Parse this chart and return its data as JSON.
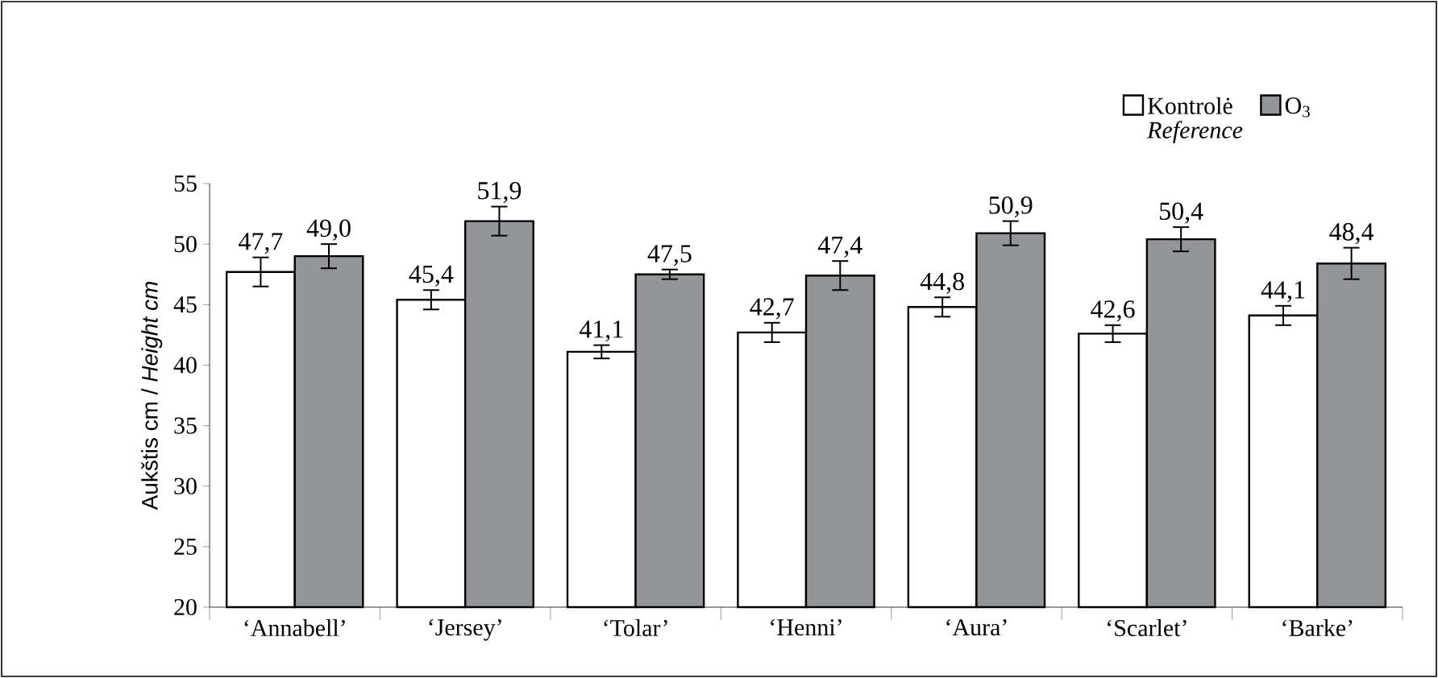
{
  "chart_data": {
    "type": "bar",
    "categories": [
      "‘Annabell’",
      "‘Jersey’",
      "‘Tolar’",
      "‘Henni’",
      "‘Aura’",
      "‘Scarlet’",
      "‘Barke’"
    ],
    "ylabel": "Aukštis cm / *Height cm*",
    "ylim": [
      20,
      55
    ],
    "yticks": [
      20,
      25,
      30,
      35,
      40,
      45,
      50,
      55
    ],
    "legend": "top right",
    "grid": false,
    "series": [
      {
        "name": "Kontrolė *Reference*",
        "color": "#ffffff",
        "values": [
          47.7,
          45.4,
          41.1,
          42.7,
          44.8,
          42.6,
          44.1
        ],
        "errors": [
          1.2,
          0.8,
          0.55,
          0.8,
          0.8,
          0.7,
          0.8
        ],
        "value_labels": [
          "47,7",
          "45,4",
          "41,1",
          "42,7",
          "44,8",
          "42,6",
          "44,1"
        ]
      },
      {
        "name": "O$_{3}$",
        "color": "#939598",
        "values": [
          49.0,
          51.9,
          47.5,
          47.4,
          50.9,
          50.4,
          48.4
        ],
        "errors": [
          1.0,
          1.2,
          0.4,
          1.2,
          1.0,
          1.0,
          1.3
        ],
        "value_labels": [
          "49,0",
          "51,9",
          "47,5",
          "47,4",
          "50,9",
          "50,4",
          "48,4"
        ]
      }
    ]
  }
}
